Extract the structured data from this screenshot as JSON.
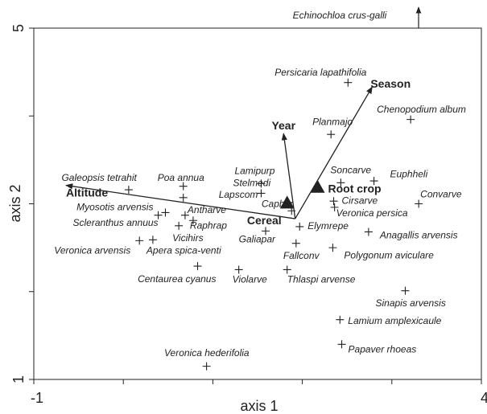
{
  "chart_data": {
    "type": "biplot",
    "xlabel": "axis 1",
    "ylabel": "axis 2",
    "xlim": [
      -1,
      4
    ],
    "ylim": [
      1,
      5
    ],
    "xticks": [
      -1,
      4
    ],
    "yticks": [
      1,
      5
    ],
    "xminorticks": [
      0,
      1,
      2,
      3
    ],
    "yminorticks": [
      2,
      3,
      4
    ],
    "annotation": "Echinochloa crus-galli",
    "origin": [
      1.92,
      2.83
    ],
    "points": [
      {
        "label": "Persicaria lapathifolia",
        "x": 2.51,
        "y": 4.38
      },
      {
        "label": "Chenopodium album",
        "x": 3.21,
        "y": 3.96
      },
      {
        "label": "Planmajo",
        "x": 2.32,
        "y": 3.79
      },
      {
        "label": "Soncarve",
        "x": 2.43,
        "y": 3.24
      },
      {
        "label": "Euphheli",
        "x": 2.8,
        "y": 3.26
      },
      {
        "label": "Convarve",
        "x": 3.3,
        "y": 3.0
      },
      {
        "label": "Cirsarve",
        "x": 2.35,
        "y": 3.03
      },
      {
        "label": "Veronica persica",
        "x": 2.36,
        "y": 2.96
      },
      {
        "label": "Anagallis arvensis",
        "x": 2.74,
        "y": 2.68
      },
      {
        "label": "Polygonum aviculare",
        "x": 2.34,
        "y": 2.5
      },
      {
        "label": "Sinapis arvensis",
        "x": 3.15,
        "y": 2.01
      },
      {
        "label": "Lamium amplexicaule",
        "x": 2.42,
        "y": 1.68
      },
      {
        "label": "Papaver rhoeas",
        "x": 2.44,
        "y": 1.4
      },
      {
        "label": "Veronica hederifolia",
        "x": 0.93,
        "y": 1.15
      },
      {
        "label": "Elymrepe",
        "x": 1.97,
        "y": 2.74
      },
      {
        "label": "Fallconv",
        "x": 1.93,
        "y": 2.55
      },
      {
        "label": "Thlaspi arvense",
        "x": 1.83,
        "y": 2.25
      },
      {
        "label": "Violarve",
        "x": 1.29,
        "y": 2.25
      },
      {
        "label": "Centaurea cyanus",
        "x": 0.83,
        "y": 2.29
      },
      {
        "label": "Galiapar",
        "x": 1.59,
        "y": 2.69
      },
      {
        "label": "Capbur",
        "x": 1.88,
        "y": 2.92
      },
      {
        "label": "Lamipurp",
        "x": 1.54,
        "y": 3.23
      },
      {
        "label": "Stelmedi",
        "x": 1.54,
        "y": 3.12
      },
      {
        "label": "Poa annua",
        "x": 0.67,
        "y": 3.2
      },
      {
        "label": "Lapscom",
        "x": 0.67,
        "y": 3.07
      },
      {
        "label": "Antharve",
        "x": 0.69,
        "y": 2.87
      },
      {
        "label": "Raphrap",
        "x": 0.78,
        "y": 2.81
      },
      {
        "label": "Vicihirs",
        "x": 0.62,
        "y": 2.75
      },
      {
        "label": "Galeopsis tetrahit",
        "x": 0.06,
        "y": 3.16
      },
      {
        "label": "Myosotis arvensis",
        "x": 0.47,
        "y": 2.9
      },
      {
        "label": "Scleranthus annuus",
        "x": 0.39,
        "y": 2.87
      },
      {
        "label": "Veronica arvensis",
        "x": 0.18,
        "y": 2.58
      },
      {
        "label": "Apera spica-venti",
        "x": 0.33,
        "y": 2.59
      }
    ],
    "arrows": [
      {
        "label": "Altitude",
        "x": -0.64,
        "y": 3.21
      },
      {
        "label": "Year",
        "x": 1.79,
        "y": 3.8
      },
      {
        "label": "Season",
        "x": 2.78,
        "y": 4.33
      }
    ],
    "centroids": [
      {
        "label": "Cereal",
        "x": 1.83,
        "y": 3.01
      },
      {
        "label": "Root crop",
        "x": 2.17,
        "y": 3.19
      }
    ]
  }
}
